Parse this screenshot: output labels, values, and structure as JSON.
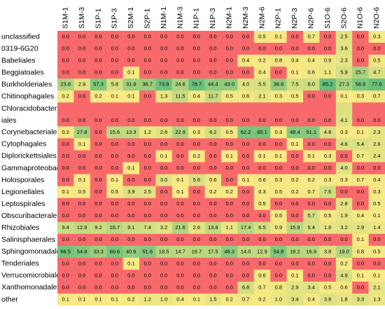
{
  "chart_data": {
    "type": "heatmap",
    "color_scale": [
      "#f8696b",
      "#ffeb84",
      "#63be7b"
    ],
    "columns": [
      "S1M-1",
      "S1M-3",
      "S1P-1",
      "S1P-3",
      "S2M-1",
      "S2P-1",
      "N1M-1",
      "N1M-3",
      "N1P-1",
      "N1P-3",
      "N2M-1",
      "N2M-3",
      "N2M-6",
      "N2P-1",
      "N2P-3",
      "N2P-6",
      "S1O-6",
      "S2O-6",
      "N1O-6",
      "N2O-6"
    ],
    "rows": [
      {
        "label": "unclassified",
        "values": [
          0,
          0,
          0,
          0,
          0,
          0,
          0,
          0,
          0,
          0,
          0,
          0,
          0.5,
          0.1,
          0,
          0.7,
          0,
          2.5,
          0,
          0.3
        ],
        "value_labels": [
          "0.0",
          "0.0",
          "0.0",
          "0.0",
          "0.0",
          "0.0",
          "0.0",
          "0.0",
          "0.0",
          "0.0",
          "0.0",
          "0.0",
          "0.5",
          "0.1",
          "0.0",
          "0.7",
          "0.0",
          "2.5",
          "0.0",
          "0.3"
        ]
      },
      {
        "label": "0319-6G20",
        "values": [
          0,
          0,
          0,
          0,
          0,
          0,
          0,
          0,
          0,
          0,
          0,
          0,
          0,
          0,
          0,
          0,
          0,
          3.6,
          0,
          0
        ],
        "value_labels": [
          "0.0",
          "0.0",
          "0.0",
          "0.0",
          "0.0",
          "0.0",
          "0.0",
          "0.0",
          "0.0",
          "0.0",
          "0.0",
          "0.0",
          "0.0",
          "0.0",
          "0.0",
          "0.0",
          "0.0",
          "3.6",
          "0.0",
          "0.0"
        ]
      },
      {
        "label": "Babeliales",
        "values": [
          0,
          0,
          0,
          0,
          0,
          0,
          0,
          0,
          0,
          0,
          0,
          0.4,
          0.2,
          0.8,
          0.4,
          0.4,
          0.9,
          2.3,
          0,
          0.5
        ],
        "value_labels": [
          "0.0",
          "0.0",
          "0.0",
          "0.0",
          "0.0",
          "0.0",
          "0.0",
          "0.0",
          "0.0",
          "0.0",
          "0.0",
          "0.4",
          "0.2",
          "0.8",
          "0.4",
          "0.4",
          "0.9",
          "2.3",
          "0.0",
          "0.5"
        ]
      },
      {
        "label": "Beggiatoales",
        "values": [
          0,
          0,
          0,
          0,
          0.1,
          0,
          0,
          0,
          0,
          0,
          0,
          0,
          0.4,
          0,
          0.1,
          0.6,
          1.1,
          5.9,
          25.7,
          4.7
        ],
        "value_labels": [
          "0.0",
          "0.0",
          "0.0",
          "0.0",
          "0.1",
          "0.0",
          "0.0",
          "0.0",
          "0.0",
          "0.0",
          "0.0",
          "0.0",
          "0.4",
          "0.0",
          "0.1",
          "0.6",
          "1.1",
          "5.9",
          "25.7",
          "4.7"
        ]
      },
      {
        "label": "Burkholderiales",
        "values": [
          23.8,
          2.9,
          57.3,
          5.8,
          31.9,
          36.7,
          73.9,
          24.6,
          78.7,
          44.4,
          43.0,
          4.0,
          5.5,
          38.8,
          7.5,
          8.0,
          85.2,
          27.3,
          58.8,
          77.6
        ],
        "value_labels": [
          "23.8",
          "2.9",
          "57.3",
          "5.8",
          "31.9",
          "36.7",
          "73.9",
          "24.6",
          "78.7",
          "44.4",
          "43.0",
          "4.0",
          "5.5",
          "38.8",
          "7.5",
          "8.0",
          "85.2",
          "27.3",
          "58.8",
          "77.6"
        ]
      },
      {
        "label": "Chitinophagales",
        "values": [
          0.2,
          0,
          0.2,
          0.1,
          0.1,
          0,
          1.3,
          11.5,
          0.4,
          11.7,
          0.5,
          0.6,
          2.1,
          0.3,
          0.5,
          0,
          0,
          0.1,
          0.3,
          0.7
        ],
        "value_labels": [
          "0.2",
          "0.0",
          "0.2",
          "0.1",
          "0.1",
          "0.0",
          "1.3",
          "11.5",
          "0.4",
          "11.7",
          "0.5",
          "0.6",
          "2.1",
          "0.3",
          "0.5",
          "0.0",
          "0.0",
          "0.1",
          "0.3",
          "0.7"
        ]
      },
      {
        "label": "Chloracidobacteriales",
        "values": [
          0,
          0,
          0,
          0,
          0,
          0,
          0,
          0,
          0,
          0,
          0,
          0,
          0,
          0,
          0,
          0,
          0,
          4.1,
          0,
          0
        ],
        "value_labels": [
          "0.0",
          "0.0",
          "0.0",
          "0.0",
          "0.0",
          "0.0",
          "0.0",
          "0.0",
          "0.0",
          "0.0",
          "0.0",
          "0.0",
          "0.0",
          "0.0",
          "0.0",
          "0.0",
          "0.0",
          "4.1",
          "0.0",
          "0.0"
        ]
      },
      {
        "label": "Corynebacteriales",
        "values": [
          0.2,
          27.8,
          0,
          15.6,
          13.3,
          1.2,
          2.6,
          22.9,
          0.3,
          6.2,
          0.5,
          62.2,
          65.1,
          0.3,
          48.4,
          51.1,
          4.8,
          0.3,
          0.1,
          2.3
        ],
        "value_labels": [
          "0.2",
          "27.8",
          "0.0",
          "15.6",
          "13.3",
          "1.2",
          "2.6",
          "22.9",
          "0.3",
          "6.2",
          "0.5",
          "62.2",
          "65.1",
          "0.3",
          "48.4",
          "51.1",
          "4.8",
          "0.3",
          "0.1",
          "2.3"
        ]
      },
      {
        "label": "Cytophagales",
        "values": [
          0,
          0.1,
          0,
          0,
          0,
          0,
          0,
          0,
          0,
          0,
          0,
          0,
          0,
          0,
          0.1,
          0,
          0,
          4.6,
          5.4,
          2.6
        ],
        "value_labels": [
          "0.0",
          "0.1",
          "0.0",
          "0.0",
          "0.0",
          "0.0",
          "0.0",
          "0.0",
          "0.0",
          "0.0",
          "0.0",
          "0.0",
          "0.0",
          "0.0",
          "0.1",
          "0.0",
          "0.0",
          "4.6",
          "5.4",
          "2.6"
        ]
      },
      {
        "label": "Diplorickettsiales",
        "values": [
          0,
          0,
          0,
          0,
          0,
          0,
          0.1,
          0,
          0.2,
          0,
          0.1,
          0,
          0.1,
          0.1,
          0,
          0.1,
          0.3,
          0,
          0.7,
          2.4
        ],
        "value_labels": [
          "0.0",
          "0.0",
          "0.0",
          "0.0",
          "0.0",
          "0.0",
          "0.1",
          "0.0",
          "0.2",
          "0.0",
          "0.1",
          "0.0",
          "0.1",
          "0.1",
          "0.0",
          "0.1",
          "0.3",
          "0.0",
          "0.7",
          "2.4"
        ]
      },
      {
        "label": "Gammaproteobacteria",
        "values": [
          0,
          0,
          0,
          0,
          0.1,
          0,
          0,
          0,
          0,
          0,
          0,
          0,
          0,
          0,
          0,
          0,
          0,
          4.0,
          0,
          0
        ],
        "value_labels": [
          "0.0",
          "0.0",
          "0.0",
          "0.0",
          "0.1",
          "0.0",
          "0.0",
          "0.0",
          "0.0",
          "0.0",
          "0.0",
          "0.0",
          "0.0",
          "0.0",
          "0.0",
          "0.0",
          "0.0",
          "4.0",
          "0.0",
          "0.0"
        ]
      },
      {
        "label": "Holosporales",
        "values": [
          0,
          0.1,
          0,
          0.1,
          0,
          0,
          3.0,
          0.1,
          5.6,
          0.6,
          0,
          0.1,
          0.6,
          0.3,
          0.2,
          0.2,
          0.3,
          0.3,
          0.7,
          0.4
        ],
        "value_labels": [
          "0.0",
          "0.1",
          "0.0",
          "0.1",
          "0.0",
          "0.0",
          "3.0",
          "0.1",
          "5.6",
          "0.6",
          "0.0",
          "0.1",
          "0.6",
          "0.3",
          "0.2",
          "0.2",
          "0.3",
          "0.3",
          "0.7",
          "0.4"
        ]
      },
      {
        "label": "Legionellales",
        "values": [
          0.1,
          0.5,
          0,
          0.5,
          3.9,
          2.5,
          0,
          0.1,
          0,
          0.2,
          0.2,
          0,
          0.3,
          0.5,
          0.2,
          0.7,
          7.6,
          0,
          0,
          0.3
        ],
        "value_labels": [
          "0.1",
          "0.5",
          "0.0",
          "0.5",
          "3.9",
          "2.5",
          "0.0",
          "0.1",
          "0.0",
          "0.2",
          "0.2",
          "0.0",
          "0.3",
          "0.5",
          "0.2",
          "0.7",
          "7.6",
          "0.0",
          "0.0",
          "0.3"
        ]
      },
      {
        "label": "Leptospirales",
        "values": [
          0,
          0,
          0,
          0,
          0,
          0,
          0,
          0,
          0,
          0,
          0,
          0,
          0.5,
          0,
          0,
          0,
          0,
          2.8,
          0,
          0.5
        ],
        "value_labels": [
          "0.0",
          "0.0",
          "0.0",
          "0.0",
          "0.0",
          "0.0",
          "0.0",
          "0.0",
          "0.0",
          "0.0",
          "0.0",
          "0.0",
          "0.5",
          "0.0",
          "0.0",
          "0.0",
          "0.0",
          "2.8",
          "0.0",
          "0.5"
        ]
      },
      {
        "label": "Obscuribacterales",
        "values": [
          0,
          0,
          0,
          0,
          0,
          0,
          0,
          0,
          0,
          0,
          0,
          0,
          0,
          0.5,
          0,
          5.7,
          0.5,
          1.9,
          0.4,
          0.1
        ],
        "value_labels": [
          "0.0",
          "0.0",
          "0.0",
          "0.0",
          "0.0",
          "0.0",
          "0.0",
          "0.0",
          "0.0",
          "0.0",
          "0.0",
          "0.0",
          "0.0",
          "0.5",
          "0.0",
          "5.7",
          "0.5",
          "1.9",
          "0.4",
          "0.1"
        ]
      },
      {
        "label": "Rhizobiales",
        "values": [
          9.4,
          12.9,
          9.2,
          16.7,
          9.1,
          7.4,
          3.2,
          21.6,
          2.6,
          13.8,
          1.1,
          17.4,
          6.5,
          0.9,
          15.9,
          5.4,
          1.8,
          3.2,
          2.9,
          1.4
        ],
        "value_labels": [
          "9.4",
          "12.9",
          "9.2",
          "16.7",
          "9.1",
          "7.4",
          "3.2",
          "21.6",
          "2.6",
          "13.8",
          "1.1",
          "17.4",
          "6.5",
          "0.9",
          "15.9",
          "5.4",
          "1.8",
          "3.2",
          "2.9",
          "1.4"
        ]
      },
      {
        "label": "Salinisphaerales",
        "values": [
          0,
          0,
          0,
          0,
          0,
          0,
          0,
          0,
          0,
          0,
          0,
          0,
          0,
          0,
          0,
          0,
          0,
          0,
          0.1,
          0
        ],
        "value_labels": [
          "0.0",
          "0.0",
          "0.0",
          "0.0",
          "0.0",
          "0.0",
          "0.0",
          "0.0",
          "0.0",
          "0.0",
          "0.0",
          "0.0",
          "0.0",
          "0.0",
          "0.0",
          "0.0",
          "0.0",
          "0.0",
          "0.1",
          "0.0"
        ]
      },
      {
        "label": "Sphingomonadales",
        "values": [
          66.5,
          54.9,
          33.3,
          60.6,
          40.6,
          51.6,
          18.5,
          14.7,
          16.7,
          17.5,
          46.3,
          14.0,
          12.9,
          54.8,
          18.2,
          16.9,
          3.8,
          19.0,
          0.8,
          0.5
        ],
        "value_labels": [
          "66.5",
          "54.9",
          "33.3",
          "60.6",
          "40.6",
          "51.6",
          "18.5",
          "14.7",
          "16.7",
          "17.5",
          "46.3",
          "14.0",
          "12.9",
          "54.8",
          "18.2",
          "16.9",
          "3.8",
          "19.0",
          "0.8",
          "0.5"
        ]
      },
      {
        "label": "Tenderiales",
        "values": [
          0,
          0,
          0,
          0,
          0.1,
          0,
          0,
          0,
          0,
          0,
          0,
          0,
          0,
          0,
          0,
          0,
          0,
          0.2,
          0,
          0
        ],
        "value_labels": [
          "0.0",
          "0.0",
          "0.0",
          "0.0",
          "0.1",
          "0.0",
          "0.0",
          "0.0",
          "0.0",
          "0.0",
          "0.0",
          "0.0",
          "0.0",
          "0.0",
          "0.0",
          "0.0",
          "0.0",
          "0.2",
          "0.0",
          "0.0"
        ]
      },
      {
        "label": "Verrucomicrobiales",
        "values": [
          0,
          0,
          0,
          0,
          0,
          0,
          0,
          0,
          0,
          0,
          0,
          0,
          0.6,
          0,
          0.1,
          0,
          0,
          4.9,
          0.1,
          0.1
        ],
        "value_labels": [
          "0.0",
          "0.0",
          "0.0",
          "0.0",
          "0.0",
          "0.0",
          "0.0",
          "0.0",
          "0.0",
          "0.0",
          "0.0",
          "0.0",
          "0.6",
          "0.0",
          "0.1",
          "0.0",
          "0.0",
          "4.9",
          "0.1",
          "0.1"
        ]
      },
      {
        "label": "Xanthomonadales",
        "values": [
          0,
          0,
          0,
          0,
          0,
          0,
          0,
          0,
          0,
          0,
          0,
          6.8,
          0.7,
          0.8,
          2.9,
          3.4,
          0.5,
          0.6,
          0,
          2.1
        ],
        "value_labels": [
          "0.0",
          "0.0",
          "0.0",
          "0.0",
          "0.0",
          "0.0",
          "0.0",
          "0.0",
          "0.0",
          "0.0",
          "0.0",
          "6.8",
          "0.7",
          "0.8",
          "2.9",
          "3.4",
          "0.5",
          "0.6",
          "0.0",
          "2.1"
        ]
      },
      {
        "label": "other",
        "values": [
          0.1,
          0.1,
          0.1,
          0.1,
          0.2,
          1.2,
          1.0,
          0.4,
          0.1,
          1.5,
          0.2,
          0.7,
          0.2,
          1.0,
          3.4,
          0.4,
          3.6,
          1.8,
          3.3,
          1.3
        ],
        "value_labels": [
          "0.1",
          "0.1",
          "0.1",
          "0.1",
          "0.2",
          "1.2",
          "1.0",
          "0.4",
          "0.1",
          "1.5",
          "0.2",
          "0.7",
          "0.2",
          "1.0",
          "3.4",
          "0.4",
          "3.6",
          "1.8",
          "3.3",
          "1.3"
        ]
      }
    ]
  }
}
